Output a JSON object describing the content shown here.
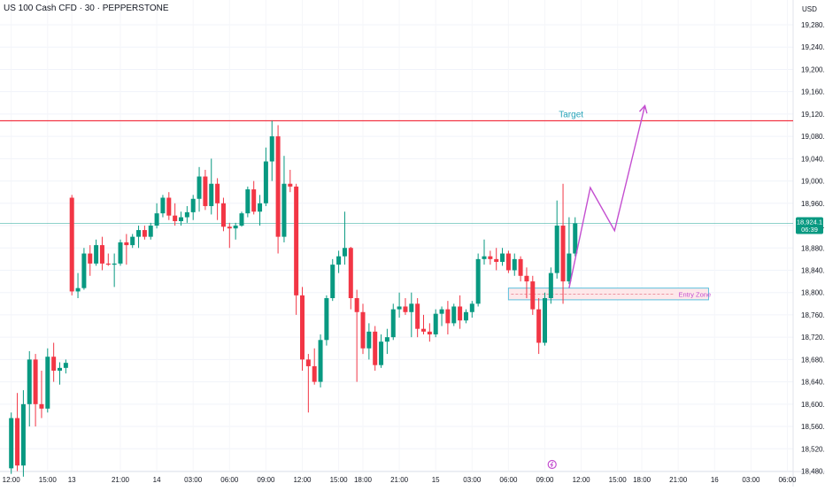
{
  "header": {
    "title": "US 100 Cash CFD · 30 · PEPPERSTONE",
    "currency": "USD"
  },
  "price_badge": {
    "price": "18,924.1",
    "countdown": "06:39"
  },
  "annotations": {
    "target": "Target",
    "entry_zone": "Entry Zone"
  },
  "colors": {
    "up": "#089981",
    "down": "#f23645",
    "target_line": "#f23645",
    "current_line": "#26a69a",
    "projection": "#c44fd0",
    "entry_zone_fill": "#fde8ea",
    "entry_zone_border": "#5bc0de",
    "target_text": "#26a4b8",
    "entry_zone_text": "#c44fd0"
  },
  "chart_data": {
    "type": "candlestick",
    "timeframe": "30",
    "ylim": [
      18460,
      19320
    ],
    "y_ticks": [
      "18,480.0",
      "18,520.0",
      "18,560.0",
      "18,600.0",
      "18,640.0",
      "18,680.0",
      "18,720.0",
      "18,760.0",
      "18,800.0",
      "18,840.0",
      "18,880.0",
      "18,920.0",
      "18,960.0",
      "19,000.0",
      "19,040.0",
      "19,080.0",
      "19,120.0",
      "19,160.0",
      "19,200.0",
      "19,240.0",
      "19,280.0"
    ],
    "x_ticks": [
      "12:00",
      "15:00",
      "13",
      "21:00",
      "14",
      "03:00",
      "06:00",
      "09:00",
      "12:00",
      "15:00",
      "18:00",
      "21:00",
      "15",
      "03:00",
      "06:00",
      "09:00",
      "12:00",
      "15:00",
      "18:00",
      "21:00",
      "16",
      "03:00",
      "06:00"
    ],
    "x_tick_units": [
      0,
      6,
      10,
      18,
      24,
      30,
      36,
      42,
      48,
      54,
      58,
      64,
      70,
      76,
      82,
      88,
      94,
      100,
      104,
      110,
      116,
      122,
      128
    ],
    "target_level": 19108,
    "current_price": 18924.1,
    "entry_zone": {
      "low": 18787,
      "high": 18808,
      "mid": 18797,
      "from_unit": 82,
      "to_unit": 115
    },
    "projection_path": [
      [
        92,
        18808
      ],
      [
        95.5,
        18988
      ],
      [
        99.5,
        18911
      ],
      [
        104.5,
        19135
      ]
    ],
    "candles": [
      {
        "o": 18485,
        "h": 18585,
        "l": 18475,
        "c": 18575
      },
      {
        "o": 18575,
        "h": 18620,
        "l": 18480,
        "c": 18490
      },
      {
        "o": 18490,
        "h": 18625,
        "l": 18470,
        "c": 18600
      },
      {
        "o": 18600,
        "h": 18695,
        "l": 18560,
        "c": 18680
      },
      {
        "o": 18680,
        "h": 18690,
        "l": 18560,
        "c": 18600
      },
      {
        "o": 18600,
        "h": 18660,
        "l": 18575,
        "c": 18592
      },
      {
        "o": 18592,
        "h": 18700,
        "l": 18585,
        "c": 18685
      },
      {
        "o": 18685,
        "h": 18710,
        "l": 18640,
        "c": 18660
      },
      {
        "o": 18660,
        "h": 18675,
        "l": 18635,
        "c": 18665
      },
      {
        "o": 18665,
        "h": 18680,
        "l": 18655,
        "c": 18674
      },
      {
        "o": 18970,
        "h": 18975,
        "l": 18795,
        "c": 18802
      },
      {
        "o": 18802,
        "h": 18835,
        "l": 18790,
        "c": 18808
      },
      {
        "o": 18808,
        "h": 18880,
        "l": 18805,
        "c": 18870
      },
      {
        "o": 18870,
        "h": 18885,
        "l": 18830,
        "c": 18852
      },
      {
        "o": 18852,
        "h": 18895,
        "l": 18848,
        "c": 18885
      },
      {
        "o": 18885,
        "h": 18900,
        "l": 18840,
        "c": 18852
      },
      {
        "o": 18852,
        "h": 18870,
        "l": 18848,
        "c": 18850
      },
      {
        "o": 18850,
        "h": 18870,
        "l": 18810,
        "c": 18852
      },
      {
        "o": 18852,
        "h": 18895,
        "l": 18848,
        "c": 18890
      },
      {
        "o": 18890,
        "h": 18905,
        "l": 18850,
        "c": 18885
      },
      {
        "o": 18885,
        "h": 18905,
        "l": 18880,
        "c": 18900
      },
      {
        "o": 18900,
        "h": 18920,
        "l": 18880,
        "c": 18912
      },
      {
        "o": 18912,
        "h": 18920,
        "l": 18895,
        "c": 18900
      },
      {
        "o": 18900,
        "h": 18925,
        "l": 18895,
        "c": 18920
      },
      {
        "o": 18920,
        "h": 18960,
        "l": 18915,
        "c": 18942
      },
      {
        "o": 18942,
        "h": 18975,
        "l": 18935,
        "c": 18970
      },
      {
        "o": 18970,
        "h": 18980,
        "l": 18930,
        "c": 18938
      },
      {
        "o": 18938,
        "h": 18960,
        "l": 18920,
        "c": 18928
      },
      {
        "o": 18928,
        "h": 18945,
        "l": 18920,
        "c": 18935
      },
      {
        "o": 18935,
        "h": 18955,
        "l": 18925,
        "c": 18944
      },
      {
        "o": 18944,
        "h": 18975,
        "l": 18930,
        "c": 18968
      },
      {
        "o": 18968,
        "h": 19025,
        "l": 18945,
        "c": 19008
      },
      {
        "o": 19008,
        "h": 19020,
        "l": 18948,
        "c": 18955
      },
      {
        "o": 18955,
        "h": 19040,
        "l": 18940,
        "c": 18995
      },
      {
        "o": 18995,
        "h": 19005,
        "l": 18930,
        "c": 18960
      },
      {
        "o": 18960,
        "h": 18970,
        "l": 18910,
        "c": 18918
      },
      {
        "o": 18918,
        "h": 18925,
        "l": 18880,
        "c": 18915
      },
      {
        "o": 18915,
        "h": 18925,
        "l": 18895,
        "c": 18920
      },
      {
        "o": 18920,
        "h": 18945,
        "l": 18918,
        "c": 18942
      },
      {
        "o": 18942,
        "h": 18990,
        "l": 18935,
        "c": 18985
      },
      {
        "o": 18985,
        "h": 19000,
        "l": 18940,
        "c": 18945
      },
      {
        "o": 18945,
        "h": 18975,
        "l": 18920,
        "c": 18960
      },
      {
        "o": 18960,
        "h": 19060,
        "l": 18955,
        "c": 19035
      },
      {
        "o": 19035,
        "h": 19108,
        "l": 19000,
        "c": 19080
      },
      {
        "o": 19080,
        "h": 19100,
        "l": 18870,
        "c": 18900
      },
      {
        "o": 18900,
        "h": 19045,
        "l": 18890,
        "c": 18995
      },
      {
        "o": 18995,
        "h": 19020,
        "l": 18980,
        "c": 18990
      },
      {
        "o": 18990,
        "h": 18995,
        "l": 18760,
        "c": 18795
      },
      {
        "o": 18795,
        "h": 18810,
        "l": 18660,
        "c": 18680
      },
      {
        "o": 18680,
        "h": 18690,
        "l": 18585,
        "c": 18668
      },
      {
        "o": 18668,
        "h": 18700,
        "l": 18635,
        "c": 18640
      },
      {
        "o": 18640,
        "h": 18725,
        "l": 18630,
        "c": 18715
      },
      {
        "o": 18715,
        "h": 18795,
        "l": 18705,
        "c": 18790
      },
      {
        "o": 18790,
        "h": 18860,
        "l": 18785,
        "c": 18850
      },
      {
        "o": 18850,
        "h": 18875,
        "l": 18835,
        "c": 18865
      },
      {
        "o": 18865,
        "h": 18945,
        "l": 18850,
        "c": 18880
      },
      {
        "o": 18880,
        "h": 18882,
        "l": 18770,
        "c": 18790
      },
      {
        "o": 18790,
        "h": 18805,
        "l": 18640,
        "c": 18765
      },
      {
        "o": 18765,
        "h": 18780,
        "l": 18690,
        "c": 18700
      },
      {
        "o": 18700,
        "h": 18745,
        "l": 18680,
        "c": 18730
      },
      {
        "o": 18730,
        "h": 18740,
        "l": 18660,
        "c": 18670
      },
      {
        "o": 18670,
        "h": 18725,
        "l": 18665,
        "c": 18712
      },
      {
        "o": 18712,
        "h": 18735,
        "l": 18690,
        "c": 18720
      },
      {
        "o": 18720,
        "h": 18780,
        "l": 18715,
        "c": 18770
      },
      {
        "o": 18770,
        "h": 18800,
        "l": 18755,
        "c": 18775
      },
      {
        "o": 18775,
        "h": 18790,
        "l": 18760,
        "c": 18765
      },
      {
        "o": 18765,
        "h": 18800,
        "l": 18720,
        "c": 18780
      },
      {
        "o": 18780,
        "h": 18790,
        "l": 18720,
        "c": 18735
      },
      {
        "o": 18735,
        "h": 18760,
        "l": 18725,
        "c": 18730
      },
      {
        "o": 18730,
        "h": 18745,
        "l": 18712,
        "c": 18725
      },
      {
        "o": 18725,
        "h": 18770,
        "l": 18720,
        "c": 18762
      },
      {
        "o": 18762,
        "h": 18775,
        "l": 18740,
        "c": 18770
      },
      {
        "o": 18770,
        "h": 18785,
        "l": 18725,
        "c": 18745
      },
      {
        "o": 18745,
        "h": 18780,
        "l": 18740,
        "c": 18775
      },
      {
        "o": 18775,
        "h": 18795,
        "l": 18735,
        "c": 18750
      },
      {
        "o": 18750,
        "h": 18770,
        "l": 18745,
        "c": 18765
      },
      {
        "o": 18765,
        "h": 18785,
        "l": 18755,
        "c": 18780
      },
      {
        "o": 18780,
        "h": 18870,
        "l": 18775,
        "c": 18860
      },
      {
        "o": 18860,
        "h": 18895,
        "l": 18850,
        "c": 18865
      },
      {
        "o": 18865,
        "h": 18875,
        "l": 18850,
        "c": 18860
      },
      {
        "o": 18860,
        "h": 18880,
        "l": 18840,
        "c": 18855
      },
      {
        "o": 18855,
        "h": 18880,
        "l": 18848,
        "c": 18870
      },
      {
        "o": 18870,
        "h": 18875,
        "l": 18835,
        "c": 18840
      },
      {
        "o": 18840,
        "h": 18870,
        "l": 18830,
        "c": 18860
      },
      {
        "o": 18860,
        "h": 18865,
        "l": 18820,
        "c": 18830
      },
      {
        "o": 18830,
        "h": 18845,
        "l": 18790,
        "c": 18820
      },
      {
        "o": 18820,
        "h": 18830,
        "l": 18760,
        "c": 18770
      },
      {
        "o": 18770,
        "h": 18790,
        "l": 18690,
        "c": 18710
      },
      {
        "o": 18710,
        "h": 18800,
        "l": 18705,
        "c": 18790
      },
      {
        "o": 18790,
        "h": 18845,
        "l": 18780,
        "c": 18835
      },
      {
        "o": 18835,
        "h": 18965,
        "l": 18825,
        "c": 18920
      },
      {
        "o": 18920,
        "h": 18995,
        "l": 18780,
        "c": 18820
      },
      {
        "o": 18820,
        "h": 18935,
        "l": 18815,
        "c": 18870
      },
      {
        "o": 18870,
        "h": 18935,
        "l": 18865,
        "c": 18924
      }
    ]
  }
}
